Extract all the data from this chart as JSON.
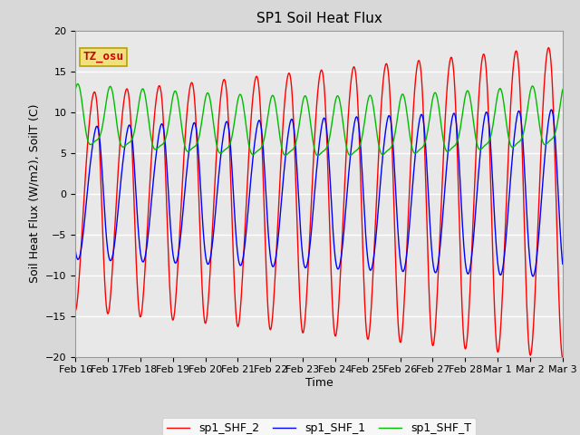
{
  "title": "SP1 Soil Heat Flux",
  "ylabel": "Soil Heat Flux (W/m2), SoilT (C)",
  "xlabel": "Time",
  "ylim": [
    -20,
    20
  ],
  "tz_label": "TZ_osu",
  "line_colors": {
    "sp1_SHF_2": "#ff0000",
    "sp1_SHF_1": "#0000ff",
    "sp1_SHF_T": "#00bb00"
  },
  "legend_labels": [
    "sp1_SHF_2",
    "sp1_SHF_1",
    "sp1_SHF_T"
  ],
  "bg_color": "#d8d8d8",
  "plot_bg_color": "#e8e8e8",
  "title_fontsize": 11,
  "axis_fontsize": 9,
  "tick_fontsize": 8,
  "start_day": 0,
  "end_day": 15,
  "n_points": 1500,
  "xtick_dates": [
    "Feb 16",
    "Feb 17",
    "Feb 18",
    "Feb 19",
    "Feb 20",
    "Feb 21",
    "Feb 22",
    "Feb 23",
    "Feb 24",
    "Feb 25",
    "Feb 26",
    "Feb 27",
    "Feb 28",
    "Mar 1",
    "Mar 2",
    "Mar 3"
  ]
}
